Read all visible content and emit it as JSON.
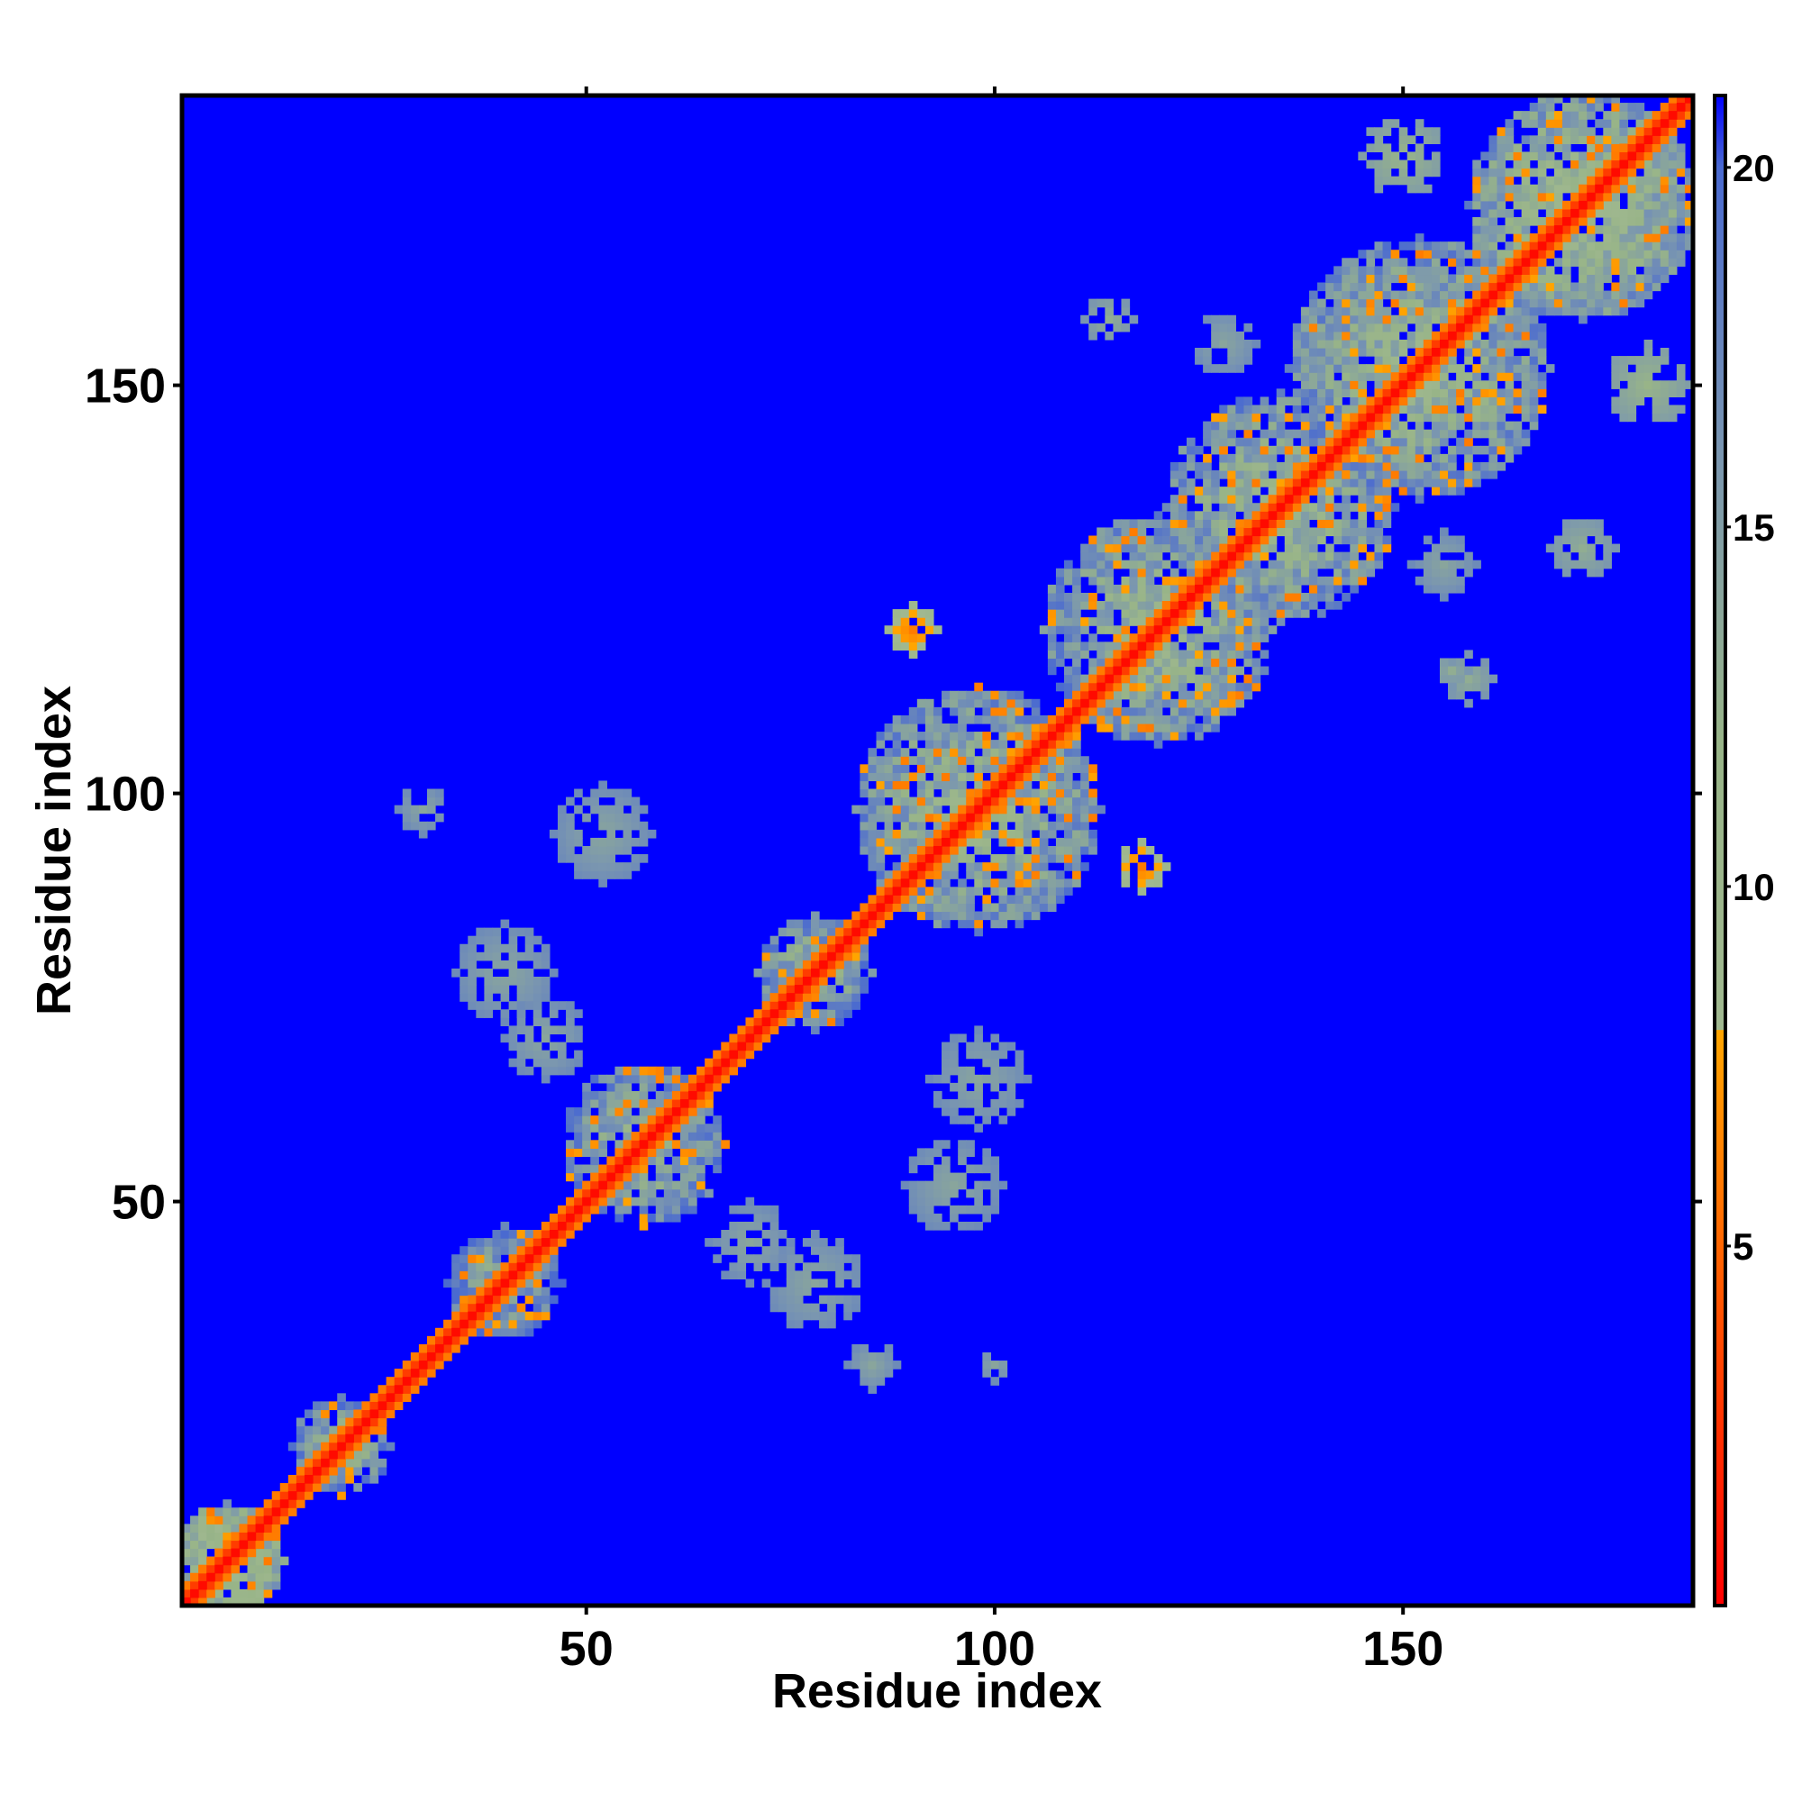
{
  "chart_data": {
    "type": "heatmap",
    "title": "",
    "xlabel": "Residue index",
    "ylabel": "Residue index",
    "n": 185,
    "xlim": [
      1,
      185
    ],
    "ylim": [
      1,
      185
    ],
    "xticks": [
      50,
      100,
      150
    ],
    "yticks": [
      50,
      100,
      150
    ],
    "colorbar": {
      "range": [
        0,
        21
      ],
      "ticks": [
        5,
        10,
        15,
        20
      ],
      "stops": [
        {
          "value": 0,
          "color": "#ff0000"
        },
        {
          "value": 4,
          "color": "#ff5000"
        },
        {
          "value": 8,
          "color": "#ffa500"
        },
        {
          "value": 8.01,
          "color": "#a0b890"
        },
        {
          "value": 12,
          "color": "#98b488"
        },
        {
          "value": 16,
          "color": "#7a96b0"
        },
        {
          "value": 20,
          "color": "#4a6ad0"
        },
        {
          "value": 21,
          "color": "#0000ff"
        }
      ]
    },
    "background_color": "#0000ff",
    "diagonal": {
      "width_residues": 2,
      "color": "#ff0000"
    },
    "domains": [
      {
        "center": [
          6,
          6
        ],
        "radius": 7,
        "level": 8
      },
      {
        "center": [
          20,
          20
        ],
        "radius": 6,
        "level": 12
      },
      {
        "center": [
          40,
          40
        ],
        "radius": 7,
        "level": 13
      },
      {
        "center": [
          57,
          57
        ],
        "radius": 10,
        "level": 12
      },
      {
        "center": [
          78,
          78
        ],
        "radius": 7,
        "level": 12
      },
      {
        "center": [
          98,
          98
        ],
        "radius": 15,
        "level": 11
      },
      {
        "center": [
          120,
          120
        ],
        "radius": 14,
        "level": 11
      },
      {
        "center": [
          135,
          135
        ],
        "radius": 14,
        "level": 11
      },
      {
        "center": [
          152,
          152
        ],
        "radius": 16,
        "level": 11
      },
      {
        "center": [
          172,
          172
        ],
        "radius": 14,
        "level": 10
      }
    ],
    "off_diagonal_contacts": [
      {
        "center": [
          90,
          120
        ],
        "radius": 3,
        "level": 6
      },
      {
        "center": [
          118,
          91
        ],
        "radius": 3,
        "level": 6
      },
      {
        "center": [
          114,
          158
        ],
        "radius": 3,
        "level": 13
      },
      {
        "center": [
          158,
          114
        ],
        "radius": 3,
        "level": 13
      },
      {
        "center": [
          155,
          128
        ],
        "radius": 4,
        "level": 14
      },
      {
        "center": [
          128,
          155
        ],
        "radius": 4,
        "level": 14
      },
      {
        "center": [
          156,
          115
        ],
        "radius": 2,
        "level": 13
      },
      {
        "center": [
          172,
          130
        ],
        "radius": 4,
        "level": 13
      },
      {
        "center": [
          180,
          150
        ],
        "radius": 5,
        "level": 12
      },
      {
        "center": [
          150,
          178
        ],
        "radius": 5,
        "level": 12
      },
      {
        "center": [
          30,
          98
        ],
        "radius": 3,
        "level": 14
      },
      {
        "center": [
          52,
          95
        ],
        "radius": 6,
        "level": 14
      },
      {
        "center": [
          40,
          78
        ],
        "radius": 6,
        "level": 14
      },
      {
        "center": [
          45,
          70
        ],
        "radius": 5,
        "level": 14
      },
      {
        "center": [
          95,
          52
        ],
        "radius": 6,
        "level": 14
      },
      {
        "center": [
          78,
          40
        ],
        "radius": 6,
        "level": 14
      },
      {
        "center": [
          70,
          45
        ],
        "radius": 5,
        "level": 14
      },
      {
        "center": [
          100,
          30
        ],
        "radius": 2,
        "level": 14
      },
      {
        "center": [
          85,
          30
        ],
        "radius": 3,
        "level": 14
      },
      {
        "center": [
          98,
          65
        ],
        "radius": 6,
        "level": 14
      }
    ]
  }
}
